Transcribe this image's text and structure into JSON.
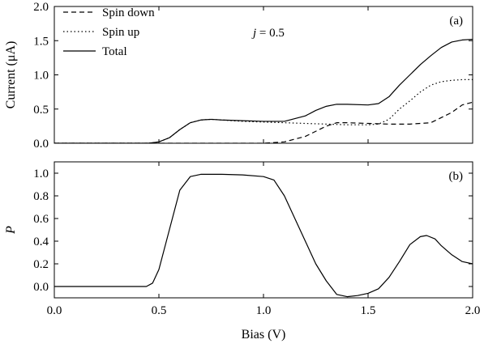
{
  "chart_data": [
    {
      "type": "line",
      "panel_label": "(a)",
      "annotation": {
        "italic": "j",
        "rest": " = 0.5"
      },
      "xlabel": "",
      "ylabel": "Current (μA)",
      "xlim": [
        0.0,
        2.0
      ],
      "ylim": [
        0.0,
        2.0
      ],
      "xticks": [
        0.0,
        0.5,
        1.0,
        1.5,
        2.0
      ],
      "yticks": [
        0.0,
        0.5,
        1.0,
        1.5,
        2.0
      ],
      "ytick_labels": [
        "0.0",
        "0.5",
        "1.0",
        "1.5",
        "2.0"
      ],
      "legend_position": "top-left",
      "series": [
        {
          "name": "Spin down",
          "style": "dashed",
          "x": [
            0.0,
            0.9,
            1.0,
            1.1,
            1.2,
            1.3,
            1.35,
            1.4,
            1.5,
            1.6,
            1.7,
            1.8,
            1.9,
            1.95,
            2.0
          ],
          "y": [
            0.0,
            0.0,
            0.0,
            0.02,
            0.1,
            0.25,
            0.3,
            0.3,
            0.29,
            0.28,
            0.28,
            0.3,
            0.45,
            0.56,
            0.6
          ]
        },
        {
          "name": "Spin up",
          "style": "dotted",
          "x": [
            0.0,
            0.45,
            0.5,
            0.55,
            0.6,
            0.65,
            0.7,
            0.75,
            0.8,
            0.9,
            1.0,
            1.1,
            1.2,
            1.3,
            1.4,
            1.5,
            1.55,
            1.6,
            1.65,
            1.7,
            1.75,
            1.8,
            1.85,
            1.9,
            1.95,
            2.0
          ],
          "y": [
            0.0,
            0.0,
            0.02,
            0.08,
            0.2,
            0.3,
            0.34,
            0.35,
            0.34,
            0.32,
            0.31,
            0.3,
            0.29,
            0.28,
            0.27,
            0.27,
            0.28,
            0.35,
            0.5,
            0.62,
            0.75,
            0.85,
            0.9,
            0.92,
            0.93,
            0.93
          ]
        },
        {
          "name": "Total",
          "style": "solid",
          "x": [
            0.0,
            0.45,
            0.5,
            0.55,
            0.6,
            0.65,
            0.7,
            0.75,
            0.8,
            0.9,
            1.0,
            1.1,
            1.2,
            1.25,
            1.3,
            1.35,
            1.4,
            1.5,
            1.55,
            1.6,
            1.65,
            1.7,
            1.75,
            1.8,
            1.85,
            1.9,
            1.95,
            2.0
          ],
          "y": [
            0.0,
            0.0,
            0.02,
            0.08,
            0.2,
            0.3,
            0.34,
            0.35,
            0.34,
            0.33,
            0.32,
            0.32,
            0.4,
            0.48,
            0.54,
            0.57,
            0.57,
            0.56,
            0.58,
            0.68,
            0.85,
            1.0,
            1.15,
            1.28,
            1.4,
            1.48,
            1.51,
            1.52
          ]
        }
      ]
    },
    {
      "type": "line",
      "panel_label": "(b)",
      "xlabel": "Bias (V)",
      "ylabel": "P",
      "xlim": [
        0.0,
        2.0
      ],
      "ylim": [
        -0.1,
        1.1
      ],
      "xticks": [
        0.0,
        0.5,
        1.0,
        1.5,
        2.0
      ],
      "xtick_labels": [
        "0.0",
        "0.5",
        "1.0",
        "1.5",
        "2.0"
      ],
      "yticks": [
        0.0,
        0.2,
        0.4,
        0.6,
        0.8,
        1.0
      ],
      "ytick_labels": [
        "0.0",
        "0.2",
        "0.4",
        "0.6",
        "0.8",
        "1.0"
      ],
      "series": [
        {
          "style": "solid",
          "x": [
            0.0,
            0.44,
            0.47,
            0.5,
            0.55,
            0.6,
            0.65,
            0.7,
            0.8,
            0.9,
            1.0,
            1.05,
            1.1,
            1.15,
            1.2,
            1.25,
            1.3,
            1.35,
            1.4,
            1.45,
            1.5,
            1.55,
            1.6,
            1.65,
            1.7,
            1.75,
            1.78,
            1.82,
            1.85,
            1.9,
            1.95,
            2.0
          ],
          "y": [
            0.0,
            0.0,
            0.03,
            0.15,
            0.5,
            0.85,
            0.97,
            0.99,
            0.99,
            0.985,
            0.97,
            0.94,
            0.8,
            0.6,
            0.4,
            0.2,
            0.05,
            -0.07,
            -0.09,
            -0.08,
            -0.06,
            -0.02,
            0.08,
            0.22,
            0.37,
            0.44,
            0.45,
            0.42,
            0.36,
            0.28,
            0.22,
            0.2
          ]
        }
      ]
    }
  ]
}
